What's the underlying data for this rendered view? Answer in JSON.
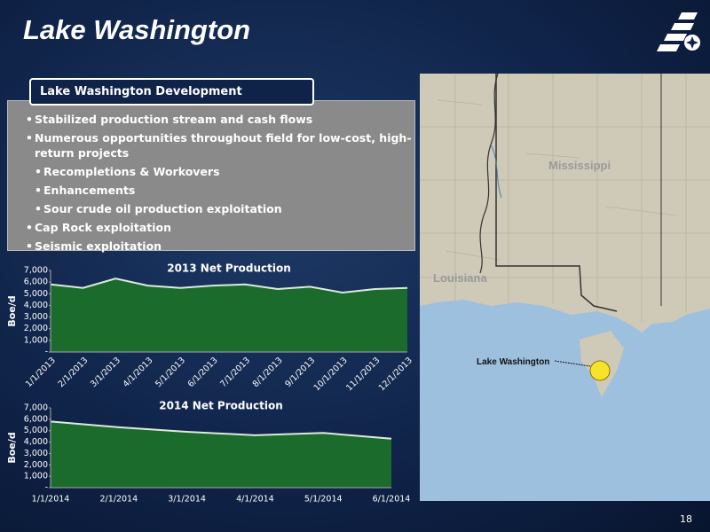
{
  "header": {
    "title": "Lake Washington"
  },
  "panel": {
    "heading": "Lake Washington Development",
    "bullets": [
      {
        "text": "Stabilized production stream and cash flows",
        "level": 1
      },
      {
        "text": "Numerous opportunities throughout field for low-cost, high-return projects",
        "level": 1
      },
      {
        "text": "Recompletions & Workovers",
        "level": 2
      },
      {
        "text": "Enhancements",
        "level": 2
      },
      {
        "text": "Sour crude oil production exploitation",
        "level": 2
      },
      {
        "text": "Cap Rock exploitation",
        "level": 1
      },
      {
        "text": "Seismic exploitation",
        "level": 1
      }
    ]
  },
  "chart_data": [
    {
      "type": "area",
      "title": "2013 Net Production",
      "y_label": "Boe/d",
      "categories": [
        "1/1/2013",
        "2/1/2013",
        "3/1/2013",
        "4/1/2013",
        "5/1/2013",
        "6/1/2013",
        "7/1/2013",
        "8/1/2013",
        "9/1/2013",
        "10/1/2013",
        "11/1/2013",
        "12/1/2013"
      ],
      "values": [
        5800,
        5500,
        6300,
        5700,
        5500,
        5700,
        5800,
        5400,
        5600,
        5100,
        5400,
        5500
      ],
      "color": "#1b6b2c",
      "ylim": [
        0,
        7000
      ],
      "yticks": [
        {
          "value": 0,
          "label": "-"
        },
        {
          "value": 1000,
          "label": "1,000"
        },
        {
          "value": 2000,
          "label": "2,000"
        },
        {
          "value": 3000,
          "label": "3,000"
        },
        {
          "value": 4000,
          "label": "4,000"
        },
        {
          "value": 5000,
          "label": "5,000"
        },
        {
          "value": 6000,
          "label": "6,000"
        },
        {
          "value": 7000,
          "label": "7,000"
        }
      ]
    },
    {
      "type": "area",
      "title": "2014 Net Production",
      "y_label": "Boe/d",
      "categories": [
        "1/1/2014",
        "2/1/2014",
        "3/1/2014",
        "4/1/2014",
        "5/1/2014",
        "6/1/2014"
      ],
      "values": [
        5800,
        5300,
        4900,
        4600,
        4800,
        4300
      ],
      "color": "#1b6b2c",
      "ylim": [
        0,
        7000
      ],
      "yticks": [
        {
          "value": 0,
          "label": "-"
        },
        {
          "value": 1000,
          "label": "1,000"
        },
        {
          "value": 2000,
          "label": "2,000"
        },
        {
          "value": 3000,
          "label": "3,000"
        },
        {
          "value": 4000,
          "label": "4,000"
        },
        {
          "value": 5000,
          "label": "5,000"
        },
        {
          "value": 6000,
          "label": "6,000"
        },
        {
          "value": 7000,
          "label": "7,000"
        }
      ]
    }
  ],
  "map": {
    "labels": {
      "north": "Mississippi",
      "west": "Louisiana",
      "site": "Lake Washington"
    }
  },
  "footer": {
    "page_number": "18"
  }
}
